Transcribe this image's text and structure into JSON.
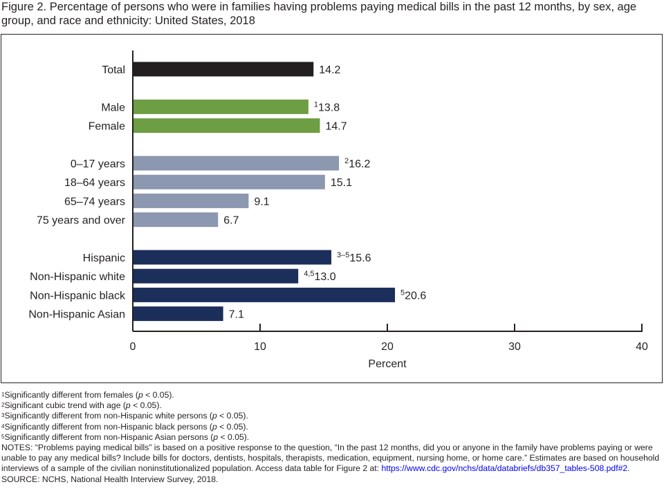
{
  "figure": {
    "title": "Figure 2. Percentage of persons who were in families having problems paying medical bills in the past 12 months, by sex, age group, and race and ethnicity: United States, 2018"
  },
  "chart_data": {
    "type": "bar",
    "orientation": "horizontal",
    "xlabel": "Percent",
    "xlim": [
      0,
      40
    ],
    "xticks": [
      "0",
      "10",
      "20",
      "30",
      "40"
    ],
    "grid": false,
    "colors": {
      "total": "#231f20",
      "sex": "#6d9e44",
      "age": "#8c97b0",
      "race": "#1c2e5a",
      "axis": "#231f20"
    },
    "groups": [
      {
        "name": "total",
        "categories": [
          {
            "label": "Total",
            "value": 14.2,
            "note": ""
          }
        ]
      },
      {
        "name": "sex",
        "categories": [
          {
            "label": "Male",
            "value": 13.8,
            "note": "1"
          },
          {
            "label": "Female",
            "value": 14.7,
            "note": ""
          }
        ]
      },
      {
        "name": "age",
        "categories": [
          {
            "label": "0–17 years",
            "value": 16.2,
            "note": "2"
          },
          {
            "label": "18–64 years",
            "value": 15.1,
            "note": ""
          },
          {
            "label": "65–74 years",
            "value": 9.1,
            "note": ""
          },
          {
            "label": "75 years and over",
            "value": 6.7,
            "note": ""
          }
        ]
      },
      {
        "name": "race",
        "categories": [
          {
            "label": "Hispanic",
            "value": 15.6,
            "note": "3–5"
          },
          {
            "label": "Non-Hispanic white",
            "value": 13.0,
            "note": "4,5"
          },
          {
            "label": "Non-Hispanic black",
            "value": 20.6,
            "note": "5"
          },
          {
            "label": "Non-Hispanic Asian",
            "value": 7.1,
            "note": ""
          }
        ]
      }
    ],
    "value_labels": [
      "14.2",
      "13.8",
      "14.7",
      "16.2",
      "15.1",
      "9.1",
      "6.7",
      "15.6",
      "13.0",
      "20.6",
      "7.1"
    ]
  },
  "footnotes": [
    {
      "mark": "1",
      "before": "Significantly different from females (",
      "p": "p",
      "after": " < 0.05)."
    },
    {
      "mark": "2",
      "before": "Significant cubic trend with age (",
      "p": "p",
      "after": " < 0.05)."
    },
    {
      "mark": "3",
      "before": "Significantly different from non-Hispanic white persons (",
      "p": "p",
      "after": " < 0.05)."
    },
    {
      "mark": "4",
      "before": "Significantly different from non-Hispanic black persons (",
      "p": "p",
      "after": " < 0.05)."
    },
    {
      "mark": "5",
      "before": "Significantly different from non-Hispanic Asian persons (",
      "p": "p",
      "after": " < 0.05)."
    }
  ],
  "notes": {
    "text": "NOTES: “Problems paying medical bills” is based on a positive response to the question, “In the past 12 months, did you or anyone in the family have problems paying or were unable to pay any medical bills? Include bills for doctors, dentists, hospitals, therapists, medication, equipment, nursing home, or home care.” Estimates are based on household interviews of a sample of the civilian noninstitutionalized population. Access data table for Figure 2 at: ",
    "link": "https://www.cdc.gov/nchs/data/databriefs/db357_tables-508.pdf#2",
    "link_end": "."
  },
  "source": "SOURCE: NCHS, National Health Interview Survey, 2018."
}
